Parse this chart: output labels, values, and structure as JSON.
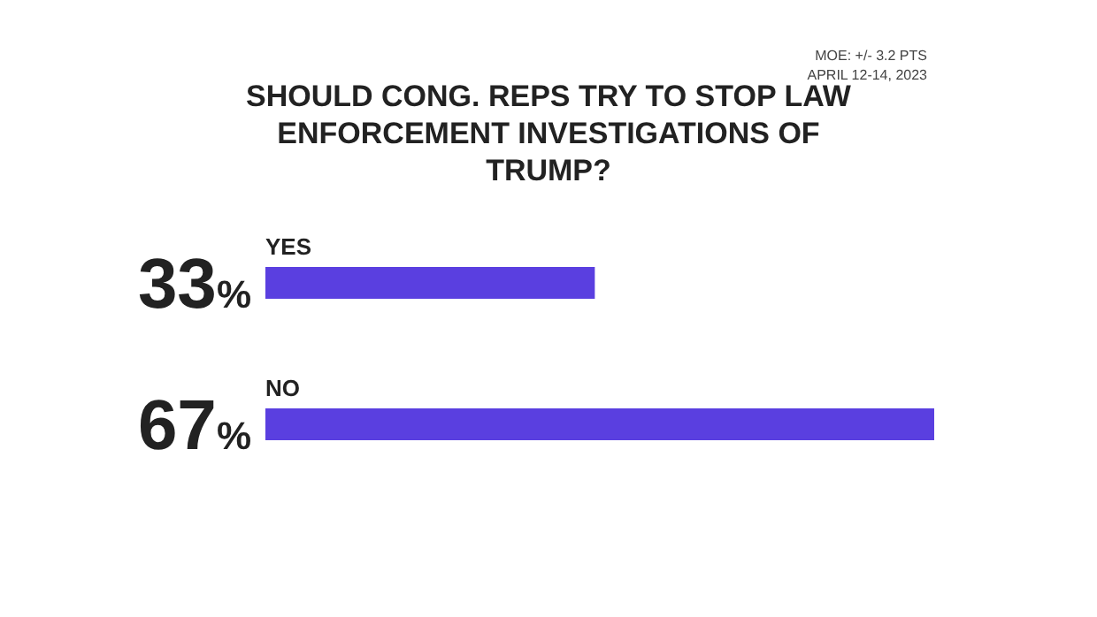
{
  "chart_data": {
    "type": "bar",
    "orientation": "horizontal",
    "title": "SHOULD CONG. REPS TRY TO STOP LAW ENFORCEMENT INVESTIGATIONS OF TRUMP?",
    "annotations": [
      "MOE: +/- 3.2 PTS",
      "APRIL 12-14, 2023"
    ],
    "categories": [
      "YES",
      "NO"
    ],
    "values": [
      33,
      67
    ],
    "value_labels": [
      "33%",
      "67%"
    ],
    "color": "#5a3fe0",
    "legend": false,
    "grid": false
  }
}
